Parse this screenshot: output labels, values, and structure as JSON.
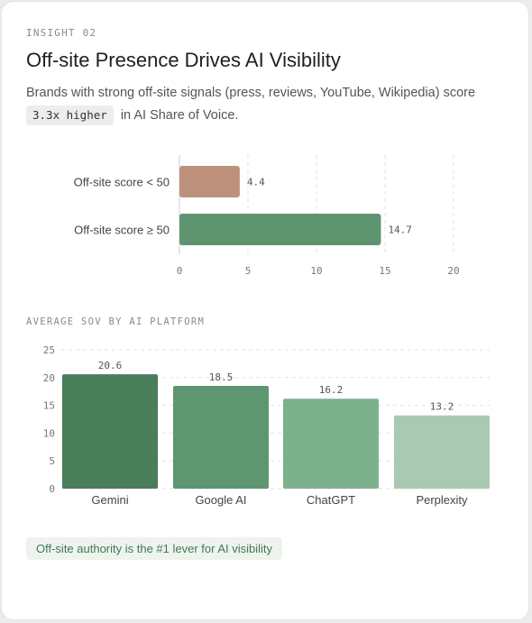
{
  "eyebrow": "INSIGHT 02",
  "title": "Off-site Presence Drives AI Visibility",
  "description": {
    "text": "Brands with strong off-site signals (press, reviews, YouTube, Wikipedia) score",
    "highlight": "3.3x higher",
    "suffix": "in AI Share of Voice."
  },
  "section_label": "AVERAGE SOV BY AI PLATFORM",
  "callout": "Off-site authority is the #1 lever for AI visibility",
  "colors": {
    "low_bar": "#bd917c",
    "high_bar": "#5f9470",
    "platforms": [
      "#4a7d59",
      "#5d9670",
      "#7db08d",
      "#a9c9b3"
    ]
  },
  "chart_data": [
    {
      "type": "bar",
      "orientation": "horizontal",
      "categories": [
        "Off-site score < 50",
        "Off-site score ≥ 50"
      ],
      "values": [
        4.4,
        14.7
      ],
      "data_labels": [
        "4.4",
        "14.7"
      ],
      "xlim": [
        0,
        20
      ],
      "xticks": [
        "0",
        "5",
        "10",
        "15",
        "20"
      ],
      "grid": "vertical dashed"
    },
    {
      "type": "bar",
      "orientation": "vertical",
      "title": "AVERAGE SOV BY AI PLATFORM",
      "categories": [
        "Gemini",
        "Google AI",
        "ChatGPT",
        "Perplexity"
      ],
      "values": [
        20.6,
        18.5,
        16.2,
        13.2
      ],
      "data_labels": [
        "20.6",
        "18.5",
        "16.2",
        "13.2"
      ],
      "ylim": [
        0,
        25
      ],
      "yticks": [
        "0",
        "5",
        "10",
        "15",
        "20",
        "25"
      ],
      "grid": "horizontal dashed"
    }
  ]
}
